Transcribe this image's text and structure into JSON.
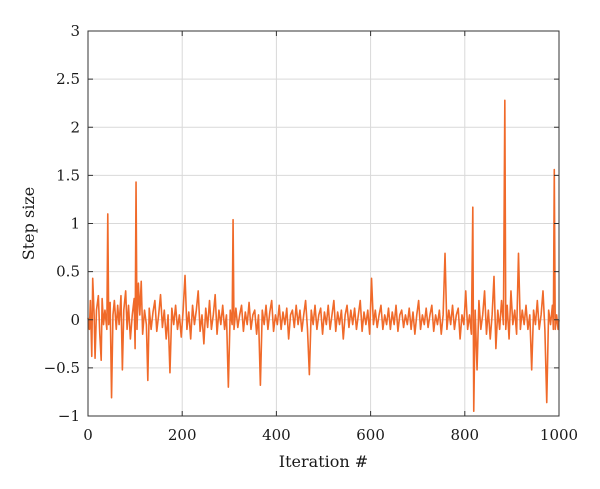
{
  "chart_data": {
    "type": "line",
    "xlabel": "Iteration #",
    "ylabel": "Step size",
    "xlim": [
      0,
      1000
    ],
    "ylim": [
      -1,
      3
    ],
    "x_ticks": [
      0,
      200,
      400,
      600,
      800,
      1000
    ],
    "y_ticks": [
      -1,
      -0.5,
      0,
      0.5,
      1,
      1.5,
      2,
      2.5,
      3
    ],
    "x_tick_labels": [
      "0",
      "200",
      "400",
      "600",
      "800",
      "1000"
    ],
    "y_tick_labels": [
      "−1",
      "−0.5",
      "0",
      "0.5",
      "1",
      "1.5",
      "2",
      "2.5",
      "3"
    ],
    "grid": true,
    "line_color": "#f06a2a",
    "series": [
      {
        "points": [
          [
            0,
            0.02
          ],
          [
            3,
            -0.1
          ],
          [
            5,
            0.2
          ],
          [
            8,
            -0.38
          ],
          [
            10,
            0.43
          ],
          [
            13,
            0.05
          ],
          [
            15,
            -0.4
          ],
          [
            18,
            0.1
          ],
          [
            22,
            0.25
          ],
          [
            25,
            -0.15
          ],
          [
            28,
            -0.42
          ],
          [
            30,
            0.22
          ],
          [
            33,
            -0.05
          ],
          [
            36,
            0.1
          ],
          [
            40,
            -0.1
          ],
          [
            42,
            1.1
          ],
          [
            44,
            -0.05
          ],
          [
            47,
            0.18
          ],
          [
            50,
            -0.81
          ],
          [
            53,
            0.05
          ],
          [
            56,
            0.2
          ],
          [
            60,
            -0.1
          ],
          [
            63,
            0.15
          ],
          [
            66,
            -0.05
          ],
          [
            70,
            0.25
          ],
          [
            73,
            -0.52
          ],
          [
            76,
            0.1
          ],
          [
            80,
            0.3
          ],
          [
            83,
            -0.1
          ],
          [
            86,
            0.15
          ],
          [
            90,
            -0.2
          ],
          [
            94,
            0.05
          ],
          [
            98,
            0.22
          ],
          [
            100,
            -0.3
          ],
          [
            102,
            1.43
          ],
          [
            104,
            -0.1
          ],
          [
            107,
            0.38
          ],
          [
            110,
            0.05
          ],
          [
            113,
            0.4
          ],
          [
            116,
            -0.15
          ],
          [
            120,
            0.1
          ],
          [
            124,
            -0.05
          ],
          [
            127,
            -0.63
          ],
          [
            130,
            0.12
          ],
          [
            134,
            -0.1
          ],
          [
            138,
            0.08
          ],
          [
            142,
            0.2
          ],
          [
            146,
            -0.12
          ],
          [
            150,
            0.05
          ],
          [
            154,
            0.26
          ],
          [
            158,
            -0.08
          ],
          [
            162,
            0.1
          ],
          [
            166,
            -0.2
          ],
          [
            170,
            0.05
          ],
          [
            174,
            -0.55
          ],
          [
            178,
            0.12
          ],
          [
            182,
            -0.05
          ],
          [
            186,
            0.15
          ],
          [
            190,
            -0.1
          ],
          [
            194,
            0.05
          ],
          [
            198,
            -0.18
          ],
          [
            202,
            0.1
          ],
          [
            206,
            0.46
          ],
          [
            210,
            -0.1
          ],
          [
            214,
            0.08
          ],
          [
            218,
            -0.2
          ],
          [
            222,
            0.15
          ],
          [
            226,
            -0.05
          ],
          [
            230,
            0.1
          ],
          [
            234,
            0.3
          ],
          [
            238,
            -0.12
          ],
          [
            242,
            0.05
          ],
          [
            246,
            -0.25
          ],
          [
            250,
            0.12
          ],
          [
            254,
            -0.08
          ],
          [
            258,
            0.2
          ],
          [
            262,
            -0.1
          ],
          [
            266,
            0.05
          ],
          [
            270,
            0.26
          ],
          [
            274,
            -0.15
          ],
          [
            278,
            0.1
          ],
          [
            282,
            -0.05
          ],
          [
            286,
            0.15
          ],
          [
            290,
            -0.1
          ],
          [
            294,
            0.05
          ],
          [
            298,
            -0.7
          ],
          [
            302,
            0.1
          ],
          [
            306,
            -0.05
          ],
          [
            308,
            1.04
          ],
          [
            310,
            -0.1
          ],
          [
            314,
            0.12
          ],
          [
            318,
            -0.08
          ],
          [
            322,
            0.05
          ],
          [
            326,
            0.15
          ],
          [
            330,
            -0.12
          ],
          [
            334,
            0.08
          ],
          [
            338,
            -0.05
          ],
          [
            342,
            0.18
          ],
          [
            346,
            -0.1
          ],
          [
            350,
            0.05
          ],
          [
            354,
            0.1
          ],
          [
            358,
            -0.15
          ],
          [
            362,
            0.05
          ],
          [
            366,
            -0.68
          ],
          [
            370,
            0.1
          ],
          [
            374,
            -0.05
          ],
          [
            378,
            0.15
          ],
          [
            382,
            -0.1
          ],
          [
            386,
            0.08
          ],
          [
            390,
            0.2
          ],
          [
            394,
            -0.12
          ],
          [
            398,
            0.05
          ],
          [
            402,
            -0.05
          ],
          [
            406,
            0.15
          ],
          [
            410,
            -0.1
          ],
          [
            414,
            0.08
          ],
          [
            418,
            -0.05
          ],
          [
            422,
            0.12
          ],
          [
            426,
            -0.2
          ],
          [
            430,
            0.05
          ],
          [
            434,
            0.1
          ],
          [
            438,
            -0.08
          ],
          [
            442,
            0.15
          ],
          [
            446,
            -0.05
          ],
          [
            450,
            0.1
          ],
          [
            454,
            -0.12
          ],
          [
            458,
            0.05
          ],
          [
            462,
            0.2
          ],
          [
            466,
            -0.1
          ],
          [
            470,
            -0.57
          ],
          [
            474,
            0.1
          ],
          [
            478,
            -0.05
          ],
          [
            482,
            0.15
          ],
          [
            486,
            -0.1
          ],
          [
            490,
            0.05
          ],
          [
            494,
            0.12
          ],
          [
            498,
            -0.15
          ],
          [
            502,
            0.08
          ],
          [
            506,
            -0.05
          ],
          [
            510,
            0.15
          ],
          [
            514,
            -0.1
          ],
          [
            518,
            0.05
          ],
          [
            522,
            0.2
          ],
          [
            526,
            -0.12
          ],
          [
            530,
            0.08
          ],
          [
            534,
            -0.05
          ],
          [
            538,
            0.1
          ],
          [
            542,
            -0.2
          ],
          [
            546,
            0.05
          ],
          [
            550,
            0.15
          ],
          [
            554,
            -0.08
          ],
          [
            558,
            0.1
          ],
          [
            562,
            -0.05
          ],
          [
            566,
            0.12
          ],
          [
            570,
            -0.1
          ],
          [
            574,
            0.05
          ],
          [
            578,
            0.2
          ],
          [
            582,
            -0.12
          ],
          [
            586,
            0.08
          ],
          [
            590,
            -0.05
          ],
          [
            594,
            0.1
          ],
          [
            598,
            -0.15
          ],
          [
            602,
            0.43
          ],
          [
            606,
            -0.05
          ],
          [
            610,
            0.1
          ],
          [
            614,
            -0.08
          ],
          [
            618,
            0.05
          ],
          [
            622,
            0.15
          ],
          [
            626,
            -0.1
          ],
          [
            630,
            0.05
          ],
          [
            634,
            -0.05
          ],
          [
            638,
            0.12
          ],
          [
            642,
            -0.1
          ],
          [
            646,
            0.08
          ],
          [
            650,
            -0.05
          ],
          [
            654,
            0.15
          ],
          [
            658,
            -0.12
          ],
          [
            662,
            0.05
          ],
          [
            666,
            0.1
          ],
          [
            670,
            -0.08
          ],
          [
            674,
            0.05
          ],
          [
            678,
            -0.05
          ],
          [
            682,
            0.12
          ],
          [
            686,
            -0.1
          ],
          [
            690,
            0.08
          ],
          [
            694,
            -0.15
          ],
          [
            698,
            0.05
          ],
          [
            702,
            0.2
          ],
          [
            706,
            -0.1
          ],
          [
            710,
            0.05
          ],
          [
            714,
            -0.05
          ],
          [
            718,
            0.12
          ],
          [
            722,
            -0.08
          ],
          [
            726,
            0.05
          ],
          [
            730,
            0.15
          ],
          [
            734,
            -0.12
          ],
          [
            738,
            0.05
          ],
          [
            742,
            -0.05
          ],
          [
            746,
            0.1
          ],
          [
            750,
            -0.15
          ],
          [
            754,
            0.05
          ],
          [
            758,
            0.69
          ],
          [
            762,
            -0.1
          ],
          [
            766,
            0.1
          ],
          [
            770,
            -0.05
          ],
          [
            774,
            0.15
          ],
          [
            778,
            -0.1
          ],
          [
            782,
            0.05
          ],
          [
            786,
            0.12
          ],
          [
            790,
            -0.2
          ],
          [
            794,
            0.05
          ],
          [
            798,
            -0.05
          ],
          [
            802,
            0.3
          ],
          [
            806,
            -0.1
          ],
          [
            810,
            0.05
          ],
          [
            814,
            -0.15
          ],
          [
            817,
            1.17
          ],
          [
            819,
            -0.95
          ],
          [
            822,
            0.1
          ],
          [
            826,
            -0.52
          ],
          [
            830,
            0.2
          ],
          [
            834,
            -0.1
          ],
          [
            838,
            0.05
          ],
          [
            842,
            0.3
          ],
          [
            846,
            -0.15
          ],
          [
            850,
            0.1
          ],
          [
            854,
            -0.2
          ],
          [
            858,
            0.05
          ],
          [
            862,
            0.45
          ],
          [
            866,
            -0.3
          ],
          [
            870,
            0.1
          ],
          [
            874,
            -0.1
          ],
          [
            878,
            0.2
          ],
          [
            882,
            -0.05
          ],
          [
            885,
            2.28
          ],
          [
            887,
            -0.1
          ],
          [
            890,
            0.15
          ],
          [
            894,
            -0.2
          ],
          [
            898,
            0.3
          ],
          [
            902,
            -0.05
          ],
          [
            906,
            0.1
          ],
          [
            910,
            -0.15
          ],
          [
            914,
            0.69
          ],
          [
            918,
            -0.1
          ],
          [
            922,
            0.1
          ],
          [
            926,
            -0.05
          ],
          [
            930,
            0.15
          ],
          [
            934,
            -0.1
          ],
          [
            938,
            0.05
          ],
          [
            942,
            -0.52
          ],
          [
            946,
            0.1
          ],
          [
            950,
            -0.05
          ],
          [
            954,
            0.2
          ],
          [
            958,
            -0.1
          ],
          [
            962,
            0.05
          ],
          [
            966,
            0.3
          ],
          [
            970,
            -0.1
          ],
          [
            974,
            -0.86
          ],
          [
            978,
            0.1
          ],
          [
            982,
            -0.05
          ],
          [
            986,
            0.15
          ],
          [
            988,
            -0.1
          ],
          [
            990,
            1.56
          ],
          [
            992,
            -0.1
          ],
          [
            995,
            0.05
          ],
          [
            998,
            -0.1
          ],
          [
            1000,
            0.0
          ]
        ]
      }
    ]
  }
}
